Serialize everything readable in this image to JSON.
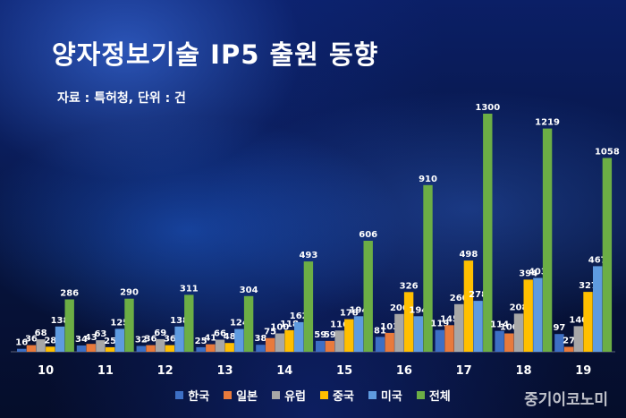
{
  "title": "양자정보기술 IP5 출원 동향",
  "subtitle": "자료 : 특허청, 단위 : 건",
  "watermark": "중기이코노미",
  "colors": {
    "한국": "#3d6fc4",
    "일본": "#e87a3c",
    "유럽": "#a7a7a7",
    "중국": "#ffbf00",
    "미국": "#5e9be0",
    "전체": "#6cae45"
  },
  "chart_data": {
    "type": "bar",
    "title": "양자정보기술 IP5 출원 동향",
    "categories": [
      "10",
      "11",
      "12",
      "13",
      "14",
      "15",
      "16",
      "17",
      "18",
      "19"
    ],
    "series": [
      {
        "name": "한국",
        "values": [
          16,
          34,
          32,
          25,
          38,
          59,
          81,
          119,
          114,
          97
        ]
      },
      {
        "name": "일본",
        "values": [
          36,
          43,
          36,
          41,
          75,
          59,
          103,
          145,
          100,
          27
        ]
      },
      {
        "name": "유럽",
        "values": [
          68,
          63,
          69,
          66,
          100,
          116,
          206,
          260,
          208,
          140
        ]
      },
      {
        "name": "중국",
        "values": [
          28,
          25,
          36,
          48,
          118,
          178,
          326,
          498,
          394,
          327
        ]
      },
      {
        "name": "미국",
        "values": [
          138,
          125,
          138,
          124,
          162,
          194,
          194,
          278,
          403,
          467
        ]
      },
      {
        "name": "전체",
        "values": [
          286,
          290,
          311,
          304,
          493,
          606,
          910,
          1300,
          1219,
          1058
        ]
      }
    ],
    "ylim": [
      0,
      1300
    ],
    "grid": false,
    "legend": "bottom"
  }
}
